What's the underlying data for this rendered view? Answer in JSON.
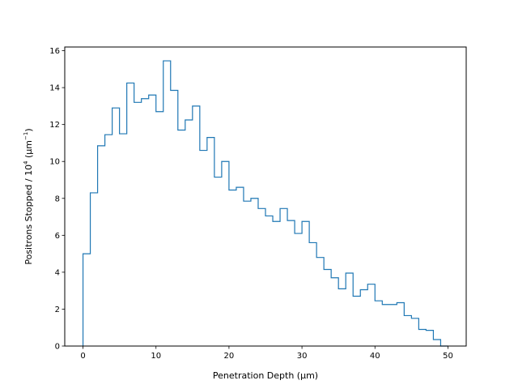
{
  "chart_data": {
    "type": "histogram-step",
    "title": "",
    "xlabel": "Penetration Depth (µm)",
    "ylabel": {
      "prefix": "Positrons Stopped / 10",
      "exp": "4",
      "unit_open": " (µm",
      "unit_exp": "−1",
      "unit_close": ")"
    },
    "xlim": [
      -2.5,
      52.5
    ],
    "ylim": [
      0,
      16.2
    ],
    "xticks": [
      0,
      10,
      20,
      30,
      40,
      50
    ],
    "yticks": [
      0,
      2,
      4,
      6,
      8,
      10,
      12,
      14,
      16
    ],
    "color": "#1f77b4",
    "bin_start": 0,
    "bin_width": 1,
    "values": [
      5.0,
      8.3,
      10.85,
      11.45,
      12.9,
      11.5,
      14.25,
      13.2,
      13.4,
      13.6,
      12.7,
      15.45,
      13.85,
      11.7,
      12.25,
      13.0,
      10.6,
      11.3,
      9.15,
      10.0,
      8.45,
      8.6,
      7.85,
      8.0,
      7.45,
      7.05,
      6.75,
      7.45,
      6.8,
      6.1,
      6.75,
      5.6,
      4.8,
      4.15,
      3.7,
      3.1,
      3.95,
      2.7,
      3.05,
      3.35,
      2.45,
      2.25,
      2.25,
      2.35,
      1.65,
      1.5,
      0.9,
      0.85,
      0.35,
      0.0
    ]
  }
}
